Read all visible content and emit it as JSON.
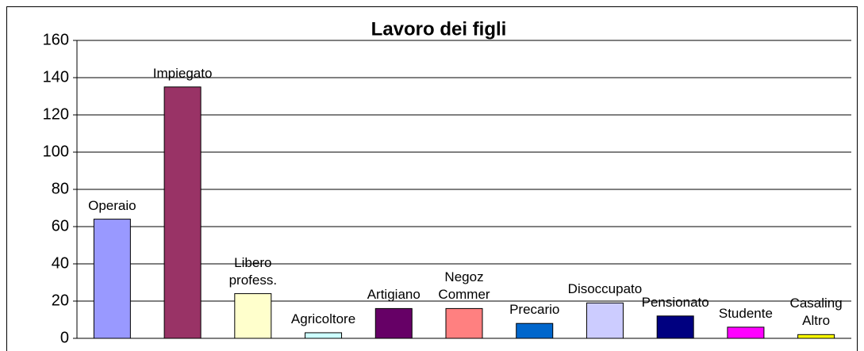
{
  "chart_data": {
    "type": "bar",
    "title": "Lavoro dei figli",
    "categories": [
      "Operaio",
      "Impiegato",
      "Libero profess.",
      "Agricoltore",
      "Artigiano",
      "Negoz Commer",
      "Precario",
      "Disoccupato",
      "Pensionato",
      "Studente",
      "Casaling Altro"
    ],
    "values": [
      64,
      135,
      24,
      3,
      16,
      16,
      8,
      19,
      12,
      6,
      2
    ],
    "colors": [
      "#9999ff",
      "#993366",
      "#ffffcc",
      "#ccffff",
      "#660066",
      "#ff8080",
      "#0066cc",
      "#ccccff",
      "#000080",
      "#ff00ff",
      "#ffff00"
    ],
    "ylim": [
      0,
      160
    ],
    "yticks": [
      0,
      20,
      40,
      60,
      80,
      100,
      120,
      140,
      160
    ],
    "grid": true
  }
}
